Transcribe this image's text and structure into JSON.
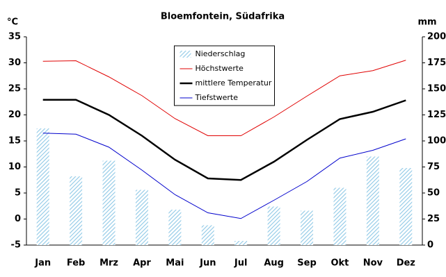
{
  "chart_data": {
    "type": "bar",
    "title": "Bloemfontein, Südafrika",
    "y_label": "°C",
    "y2_label": "mm",
    "categories": [
      "Jan",
      "Feb",
      "Mrz",
      "Apr",
      "Mai",
      "Jun",
      "Jul",
      "Aug",
      "Sep",
      "Okt",
      "Nov",
      "Dez"
    ],
    "ylim": [
      -5,
      35
    ],
    "yticks": [
      -5,
      0,
      5,
      10,
      15,
      20,
      25,
      30,
      35
    ],
    "y2lim": [
      0,
      200
    ],
    "y2ticks": [
      0,
      25,
      50,
      75,
      100,
      125,
      150,
      175,
      200
    ],
    "legend": "upper center",
    "series": [
      {
        "name": "Niederschlag",
        "type": "bar",
        "axis": "y2",
        "color": "#8ec8e6",
        "values": [
          112,
          66,
          81,
          53,
          34,
          19,
          4,
          37,
          33,
          55,
          85,
          74
        ]
      },
      {
        "name": "Höchstwerte",
        "type": "line",
        "color": "#e00000",
        "values": [
          30.3,
          30.4,
          27.3,
          23.7,
          19.3,
          16.0,
          16.0,
          19.6,
          23.6,
          27.5,
          28.5,
          30.5
        ]
      },
      {
        "name": "mittlere Temperatur",
        "type": "line",
        "color": "#000000",
        "values": [
          22.9,
          22.9,
          20.0,
          16.0,
          11.4,
          7.8,
          7.5,
          11.0,
          15.2,
          19.2,
          20.6,
          22.8
        ]
      },
      {
        "name": "Tiefstwerte",
        "type": "line",
        "color": "#0000cc",
        "values": [
          16.5,
          16.3,
          13.8,
          9.4,
          4.7,
          1.2,
          0.1,
          3.6,
          7.2,
          11.7,
          13.2,
          15.4
        ]
      }
    ]
  }
}
